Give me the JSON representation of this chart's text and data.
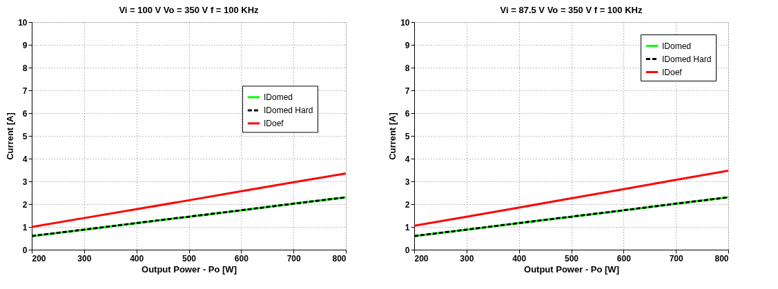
{
  "chart_data": [
    {
      "type": "line",
      "title": "Vi =  100 V  Vo =  350 V    f = 100 KHz",
      "xlabel": "Output Power - Po [W]",
      "ylabel": "Current [A]",
      "x": [
        200,
        300,
        400,
        500,
        600,
        700,
        800
      ],
      "series": [
        {
          "name": "IDomed",
          "color": "#00ff00",
          "line_style": "solid",
          "values": [
            0.6,
            0.88,
            1.17,
            1.45,
            1.73,
            2.02,
            2.3
          ]
        },
        {
          "name": "IDomed Hard",
          "color": "#000000",
          "line_style": "dashed",
          "values": [
            0.6,
            0.88,
            1.17,
            1.45,
            1.73,
            2.02,
            2.3
          ]
        },
        {
          "name": "IDoef",
          "color": "#ff0000",
          "line_style": "solid",
          "values": [
            1.0,
            1.39,
            1.78,
            2.17,
            2.57,
            2.96,
            3.35
          ]
        }
      ],
      "xlim": [
        200,
        800
      ],
      "xticks": [
        200,
        300,
        400,
        500,
        600,
        700,
        800
      ],
      "ylim": [
        0,
        10
      ],
      "yticks": [
        0,
        1,
        2,
        3,
        4,
        5,
        6,
        7,
        8,
        9,
        10
      ],
      "grid": true,
      "legend": "right"
    },
    {
      "type": "line",
      "title": "Vi =  87.5 V  Vo =  350 V    f = 100 KHz",
      "xlabel": "Output Power - Po [W]",
      "ylabel": "Current [A]",
      "x": [
        200,
        300,
        400,
        500,
        600,
        700,
        800
      ],
      "series": [
        {
          "name": "IDomed",
          "color": "#00ff00",
          "line_style": "solid",
          "values": [
            0.6,
            0.88,
            1.17,
            1.45,
            1.73,
            2.02,
            2.3
          ]
        },
        {
          "name": "IDomed Hard",
          "color": "#000000",
          "line_style": "dashed",
          "values": [
            0.6,
            0.88,
            1.17,
            1.45,
            1.73,
            2.02,
            2.3
          ]
        },
        {
          "name": "IDoef",
          "color": "#ff0000",
          "line_style": "solid",
          "values": [
            1.05,
            1.45,
            1.85,
            2.26,
            2.66,
            3.07,
            3.47
          ]
        }
      ],
      "xlim": [
        200,
        800
      ],
      "xticks": [
        200,
        300,
        400,
        500,
        600,
        700,
        800
      ],
      "ylim": [
        0,
        10
      ],
      "yticks": [
        0,
        1,
        2,
        3,
        4,
        5,
        6,
        7,
        8,
        9,
        10
      ],
      "grid": true,
      "legend": "top right"
    }
  ]
}
